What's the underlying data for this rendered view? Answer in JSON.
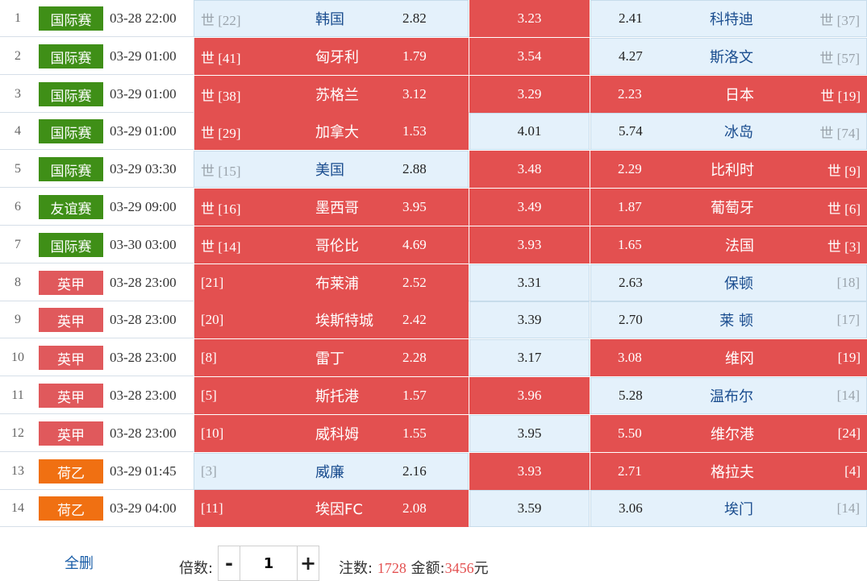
{
  "matches": [
    {
      "no": "1",
      "league": "国际赛",
      "league_type": "intl",
      "time": "03-28 22:00",
      "home_rank": "世 [22]",
      "home": "韩国",
      "home_odd": "2.82",
      "home_sel": false,
      "draw_odd": "3.23",
      "draw_sel": true,
      "away_odd": "2.41",
      "away": "科特迪",
      "away_rank": "世 [37]",
      "away_sel": false
    },
    {
      "no": "2",
      "league": "国际赛",
      "league_type": "intl",
      "time": "03-29 01:00",
      "home_rank": "世 [41]",
      "home": "匈牙利",
      "home_odd": "1.79",
      "home_sel": true,
      "draw_odd": "3.54",
      "draw_sel": true,
      "away_odd": "4.27",
      "away": "斯洛文",
      "away_rank": "世 [57]",
      "away_sel": false
    },
    {
      "no": "3",
      "league": "国际赛",
      "league_type": "intl",
      "time": "03-29 01:00",
      "home_rank": "世 [38]",
      "home": "苏格兰",
      "home_odd": "3.12",
      "home_sel": true,
      "draw_odd": "3.29",
      "draw_sel": true,
      "away_odd": "2.23",
      "away": "日本",
      "away_rank": "世 [19]",
      "away_sel": true
    },
    {
      "no": "4",
      "league": "国际赛",
      "league_type": "intl",
      "time": "03-29 01:00",
      "home_rank": "世 [29]",
      "home": "加拿大",
      "home_odd": "1.53",
      "home_sel": true,
      "draw_odd": "4.01",
      "draw_sel": false,
      "away_odd": "5.74",
      "away": "冰岛",
      "away_rank": "世 [74]",
      "away_sel": false
    },
    {
      "no": "5",
      "league": "国际赛",
      "league_type": "intl",
      "time": "03-29 03:30",
      "home_rank": "世 [15]",
      "home": "美国",
      "home_odd": "2.88",
      "home_sel": false,
      "draw_odd": "3.48",
      "draw_sel": true,
      "away_odd": "2.29",
      "away": "比利时",
      "away_rank": "世 [9]",
      "away_sel": true
    },
    {
      "no": "6",
      "league": "友谊赛",
      "league_type": "friendly",
      "time": "03-29 09:00",
      "home_rank": "世 [16]",
      "home": "墨西哥",
      "home_odd": "3.95",
      "home_sel": true,
      "draw_odd": "3.49",
      "draw_sel": true,
      "away_odd": "1.87",
      "away": "葡萄牙",
      "away_rank": "世 [6]",
      "away_sel": true
    },
    {
      "no": "7",
      "league": "国际赛",
      "league_type": "intl",
      "time": "03-30 03:00",
      "home_rank": "世 [14]",
      "home": "哥伦比",
      "home_odd": "4.69",
      "home_sel": true,
      "draw_odd": "3.93",
      "draw_sel": true,
      "away_odd": "1.65",
      "away": "法国",
      "away_rank": "世 [3]",
      "away_sel": true
    },
    {
      "no": "8",
      "league": "英甲",
      "league_type": "epl",
      "time": "03-28 23:00",
      "home_rank": "[21]",
      "home": "布莱浦",
      "home_odd": "2.52",
      "home_sel": true,
      "draw_odd": "3.31",
      "draw_sel": false,
      "away_odd": "2.63",
      "away": "保顿",
      "away_rank": "[18]",
      "away_sel": false
    },
    {
      "no": "9",
      "league": "英甲",
      "league_type": "epl",
      "time": "03-28 23:00",
      "home_rank": "[20]",
      "home": "埃斯特城",
      "home_odd": "2.42",
      "home_sel": true,
      "draw_odd": "3.39",
      "draw_sel": false,
      "away_odd": "2.70",
      "away": "莱 顿",
      "away_rank": "[17]",
      "away_sel": false
    },
    {
      "no": "10",
      "league": "英甲",
      "league_type": "epl",
      "time": "03-28 23:00",
      "home_rank": "[8]",
      "home": "雷丁",
      "home_odd": "2.28",
      "home_sel": true,
      "draw_odd": "3.17",
      "draw_sel": false,
      "away_odd": "3.08",
      "away": "维冈",
      "away_rank": "[19]",
      "away_sel": true
    },
    {
      "no": "11",
      "league": "英甲",
      "league_type": "epl",
      "time": "03-28 23:00",
      "home_rank": "[5]",
      "home": "斯托港",
      "home_odd": "1.57",
      "home_sel": true,
      "draw_odd": "3.96",
      "draw_sel": true,
      "away_odd": "5.28",
      "away": "温布尔",
      "away_rank": "[14]",
      "away_sel": false
    },
    {
      "no": "12",
      "league": "英甲",
      "league_type": "epl",
      "time": "03-28 23:00",
      "home_rank": "[10]",
      "home": "威科姆",
      "home_odd": "1.55",
      "home_sel": true,
      "draw_odd": "3.95",
      "draw_sel": false,
      "away_odd": "5.50",
      "away": "维尔港",
      "away_rank": "[24]",
      "away_sel": true
    },
    {
      "no": "13",
      "league": "荷乙",
      "league_type": "ere",
      "time": "03-29 01:45",
      "home_rank": "[3]",
      "home": "威廉",
      "home_odd": "2.16",
      "home_sel": false,
      "draw_odd": "3.93",
      "draw_sel": true,
      "away_odd": "2.71",
      "away": "格拉夫",
      "away_rank": "[4]",
      "away_sel": true
    },
    {
      "no": "14",
      "league": "荷乙",
      "league_type": "ere",
      "time": "03-29 04:00",
      "home_rank": "[11]",
      "home": "埃因FC",
      "home_odd": "2.08",
      "home_sel": true,
      "draw_odd": "3.59",
      "draw_sel": false,
      "away_odd": "3.06",
      "away": "埃门",
      "away_rank": "[14]",
      "away_sel": false
    }
  ],
  "footer": {
    "clear_label": "全删",
    "multiplier_label": "倍数:",
    "minus_label": "-",
    "plus_label": "+",
    "multiplier_value": "1",
    "bets_label": "注数:",
    "bets_value": "1728",
    "amount_label": "金额:",
    "amount_value": "3456",
    "amount_unit": "元"
  },
  "colors": {
    "selected": "#e35050",
    "unselected": "#e4f1fb",
    "badge_intl": "#3f8f17",
    "badge_epl": "#e0595c",
    "badge_ere": "#f07012"
  }
}
